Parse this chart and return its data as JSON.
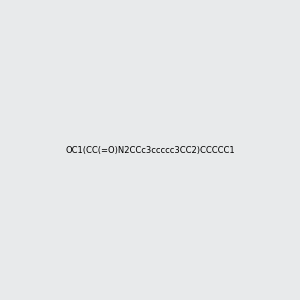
{
  "smiles": "OC1(CC(=O)N2CCc3ccccc3CC2)CCCCC1",
  "background_color": "#e8eaeb",
  "fig_width": 3.0,
  "fig_height": 3.0,
  "dpi": 100
}
